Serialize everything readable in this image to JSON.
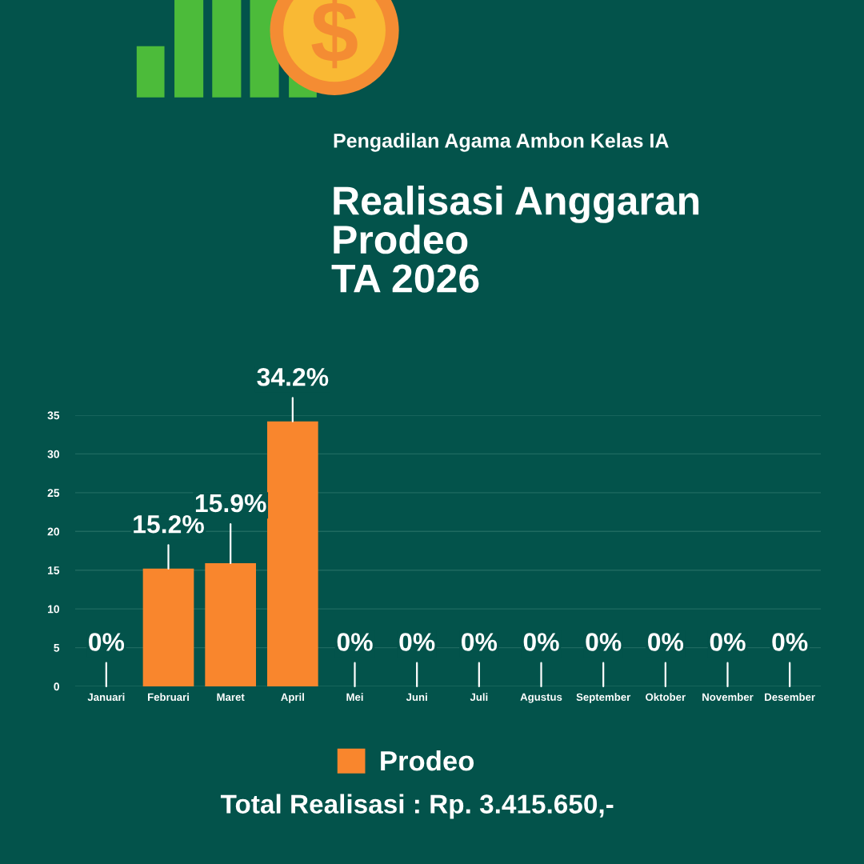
{
  "chart_data": {
    "type": "bar",
    "subtitle": "Pengadilan Agama Ambon Kelas IA",
    "title": "Realisasi Anggaran\nProdeo\nTA 2026",
    "categories": [
      "Januari",
      "Februari",
      "Maret",
      "April",
      "Mei",
      "Juni",
      "Juli",
      "Agustus",
      "September",
      "Oktober",
      "November",
      "Desember"
    ],
    "series": [
      {
        "name": "Prodeo",
        "color": "#f9862d",
        "values": [
          0,
          15.2,
          15.9,
          34.2,
          0,
          0,
          0,
          0,
          0,
          0,
          0,
          0
        ],
        "value_labels": [
          "0%",
          "15.2%",
          "15.9%",
          "34.2%",
          "0%",
          "0%",
          "0%",
          "0%",
          "0%",
          "0%",
          "0%",
          "0%"
        ]
      }
    ],
    "ylim": [
      0,
      35
    ],
    "yticks": [
      0,
      5,
      10,
      15,
      20,
      25,
      30,
      35
    ],
    "grid": "y",
    "legend": "bottom",
    "annotations": [
      "Total Realisasi : Rp. 3.415.650,-"
    ]
  }
}
